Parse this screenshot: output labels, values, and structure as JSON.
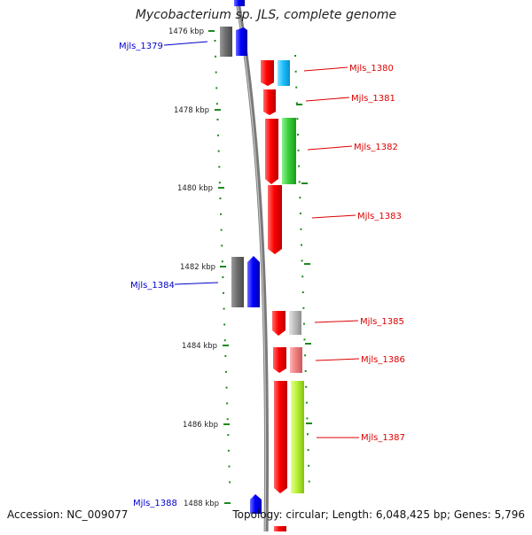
{
  "title": "Mycobacterium sp. JLS, complete genome",
  "accession": "Accession: NC_009077",
  "topology": "Topology: circular; Length: 6,048,425 bp; Genes: 5,796",
  "colors": {
    "backbone": "#8a8a8a",
    "tick": "#1f8a1f",
    "label_forward": "#0000cc",
    "label_reverse": "#dd0000"
  },
  "ticks": [
    "1476 kbp",
    "1478 kbp",
    "1480 kbp",
    "1482 kbp",
    "1484 kbp",
    "1486 kbp",
    "1488 kbp"
  ],
  "genes": [
    {
      "name": "Mjls_1379",
      "strand": "forward"
    },
    {
      "name": "Mjls_1380",
      "strand": "reverse"
    },
    {
      "name": "Mjls_1381",
      "strand": "reverse"
    },
    {
      "name": "Mjls_1382",
      "strand": "reverse"
    },
    {
      "name": "Mjls_1383",
      "strand": "reverse"
    },
    {
      "name": "Mjls_1384",
      "strand": "forward"
    },
    {
      "name": "Mjls_1385",
      "strand": "reverse"
    },
    {
      "name": "Mjls_1386",
      "strand": "reverse"
    },
    {
      "name": "Mjls_1387",
      "strand": "reverse"
    },
    {
      "name": "Mjls_1388",
      "strand": "forward"
    }
  ]
}
